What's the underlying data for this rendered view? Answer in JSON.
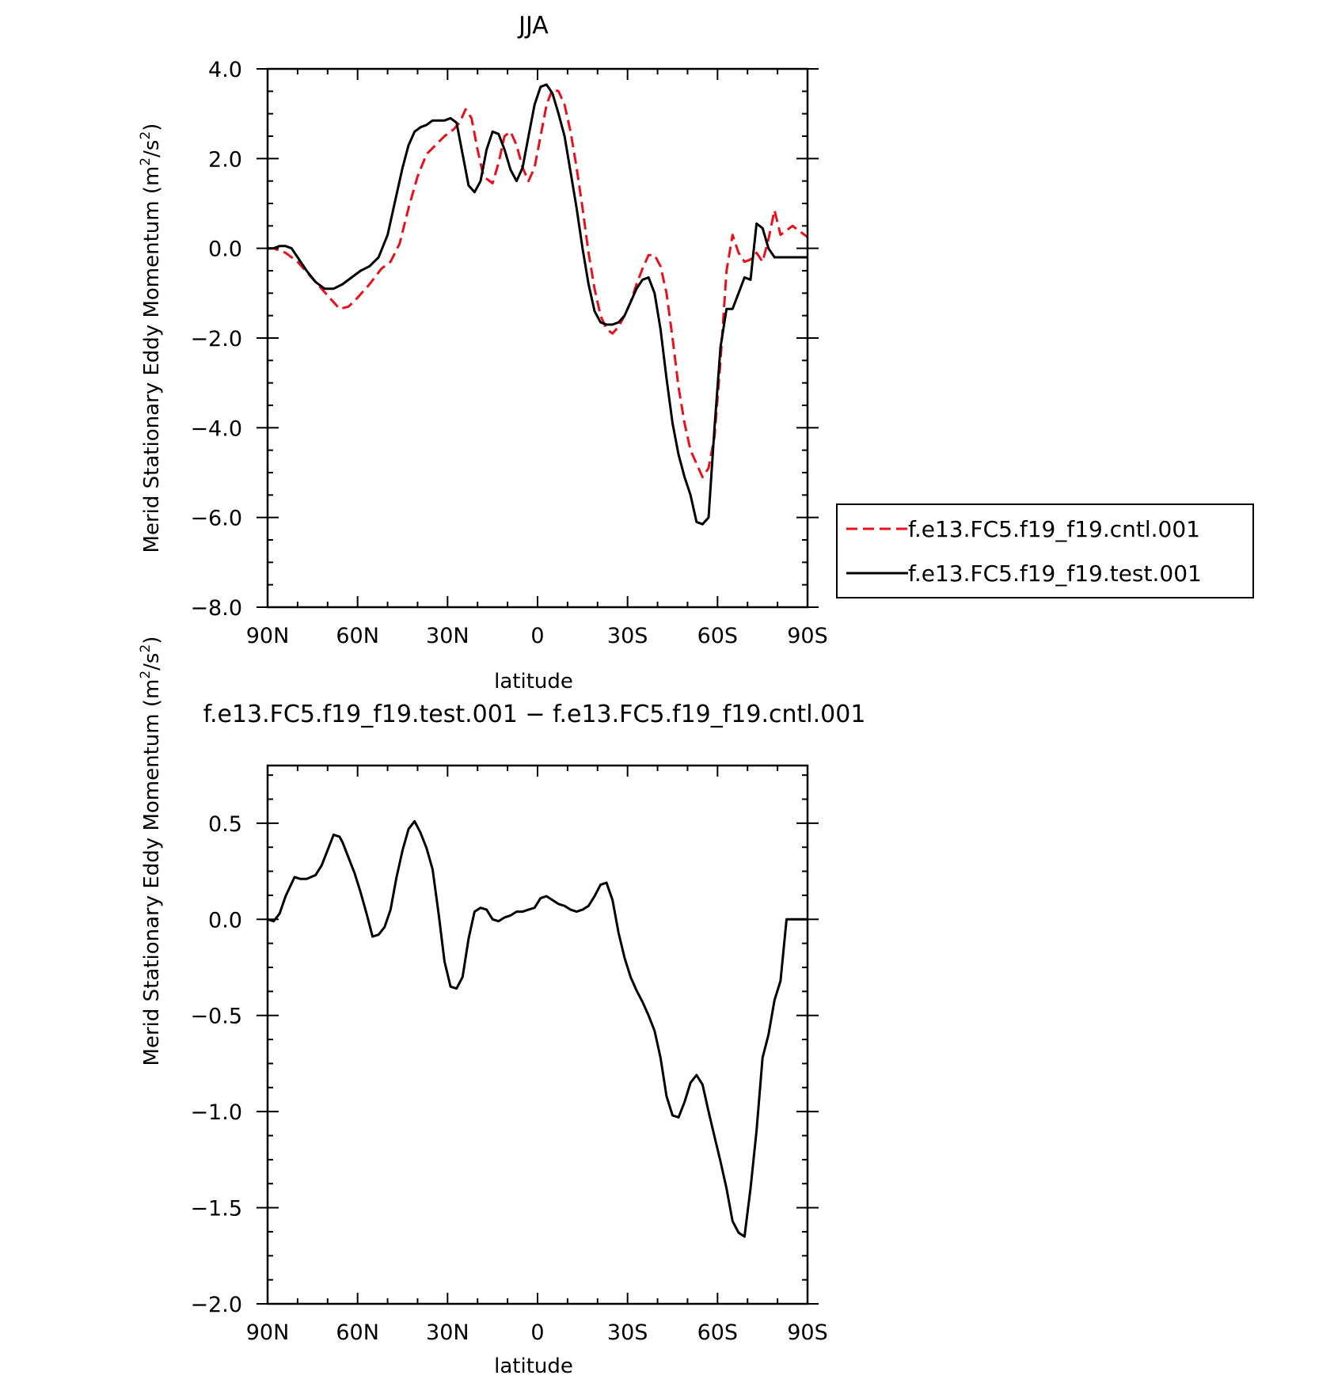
{
  "chart_data": [
    {
      "type": "line",
      "title": "JJA",
      "xlabel": "latitude",
      "ylabel": "Merid Stationary Eddy Momentum",
      "ylabel_unit_base": "m",
      "ylabel_unit_mid": "/s",
      "ylabel_unit_sup": "2",
      "xlim": [
        90,
        -90
      ],
      "ylim": [
        -8,
        4
      ],
      "xticks": [
        90,
        60,
        30,
        0,
        -30,
        -60,
        -90
      ],
      "xtick_labels": [
        "90N",
        "60N",
        "30N",
        "0",
        "30S",
        "60S",
        "90S"
      ],
      "yticks": [
        -8,
        -6,
        -4,
        -2,
        0,
        2,
        4
      ],
      "ytick_labels": [
        "−8.0",
        "−6.0",
        "−4.0",
        "−2.0",
        "0.0",
        "2.0",
        "4.0"
      ],
      "legend_placement": "right",
      "series": [
        {
          "name": "f.e13.FC5.f19_f19.cntl.001",
          "color": "#e8101a",
          "style": "dashed",
          "x": [
            90,
            88,
            84,
            80,
            76,
            72,
            68,
            66,
            63,
            60,
            56,
            52,
            49,
            46,
            43,
            40,
            37,
            34,
            31,
            28,
            26,
            24,
            22,
            20,
            18,
            15,
            13,
            11,
            9,
            7,
            5,
            3,
            1,
            -1,
            -3,
            -5,
            -7,
            -9,
            -11,
            -13,
            -15,
            -17,
            -19,
            -21,
            -23,
            -25,
            -27,
            -29,
            -31,
            -33,
            -35,
            -37,
            -39,
            -41,
            -43,
            -45,
            -47,
            -49,
            -51,
            -53,
            -55,
            -57,
            -59,
            -61,
            -63,
            -65,
            -67,
            -69,
            -71,
            -73,
            -75,
            -77,
            -79,
            -81,
            -83,
            -85,
            -86,
            -87,
            -88,
            -89,
            -90
          ],
          "y": [
            0.0,
            0.0,
            -0.1,
            -0.3,
            -0.6,
            -0.9,
            -1.2,
            -1.35,
            -1.3,
            -1.1,
            -0.8,
            -0.45,
            -0.3,
            0.1,
            0.9,
            1.6,
            2.1,
            2.3,
            2.5,
            2.65,
            2.8,
            3.1,
            2.9,
            2.2,
            1.6,
            1.45,
            1.9,
            2.5,
            2.6,
            2.3,
            1.8,
            1.5,
            1.8,
            2.5,
            3.2,
            3.55,
            3.5,
            3.2,
            2.6,
            1.8,
            0.9,
            -0.1,
            -0.9,
            -1.5,
            -1.8,
            -1.9,
            -1.75,
            -1.5,
            -1.2,
            -0.8,
            -0.45,
            -0.15,
            -0.15,
            -0.4,
            -1.0,
            -2.0,
            -3.1,
            -3.9,
            -4.5,
            -4.8,
            -5.1,
            -4.9,
            -4.2,
            -2.5,
            -0.5,
            0.3,
            -0.1,
            -0.3,
            -0.25,
            -0.1,
            -0.3,
            0.2,
            0.85,
            0.3,
            0.4,
            0.5,
            0.45,
            0.4,
            0.35,
            0.3,
            0.25
          ],
          "x_clip": true
        },
        {
          "name": "f.e13.FC5.f19_f19.test.001",
          "color": "#000000",
          "style": "solid",
          "x": [
            90,
            88,
            86,
            84,
            82,
            80,
            77,
            74,
            71,
            68,
            65,
            62,
            59,
            56,
            53,
            50,
            47,
            45,
            43,
            41,
            39,
            37,
            35,
            33,
            31,
            29,
            27,
            25,
            23,
            21,
            19,
            17,
            15,
            13,
            11,
            9,
            7,
            5,
            3,
            1,
            -1,
            -3,
            -5,
            -7,
            -9,
            -11,
            -13,
            -15,
            -17,
            -19,
            -21,
            -23,
            -25,
            -27,
            -29,
            -31,
            -33,
            -35,
            -37,
            -39,
            -41,
            -43,
            -45,
            -47,
            -49,
            -51,
            -53,
            -55,
            -57,
            -59,
            -61,
            -63,
            -65,
            -67,
            -69,
            -71,
            -73,
            -75,
            -77,
            -79,
            -81,
            -83,
            -85,
            -87,
            -88,
            -89,
            -90
          ],
          "y": [
            0.0,
            0.0,
            0.05,
            0.05,
            0.0,
            -0.2,
            -0.5,
            -0.75,
            -0.9,
            -0.9,
            -0.8,
            -0.65,
            -0.5,
            -0.4,
            -0.2,
            0.3,
            1.2,
            1.8,
            2.3,
            2.6,
            2.7,
            2.75,
            2.85,
            2.85,
            2.85,
            2.9,
            2.8,
            2.1,
            1.4,
            1.25,
            1.5,
            2.2,
            2.6,
            2.55,
            2.2,
            1.75,
            1.5,
            1.8,
            2.5,
            3.2,
            3.6,
            3.65,
            3.45,
            3.0,
            2.5,
            1.7,
            0.9,
            0.0,
            -0.8,
            -1.4,
            -1.65,
            -1.7,
            -1.7,
            -1.65,
            -1.5,
            -1.2,
            -0.9,
            -0.7,
            -0.65,
            -1.0,
            -1.8,
            -2.9,
            -3.9,
            -4.6,
            -5.1,
            -5.5,
            -6.1,
            -6.15,
            -6.0,
            -4.0,
            -2.2,
            -1.35,
            -1.35,
            -1.0,
            -0.65,
            -0.7,
            0.55,
            0.45,
            0.0,
            -0.2,
            -0.2,
            -0.2,
            -0.2,
            -0.2,
            -0.2,
            -0.2,
            -0.2
          ],
          "x_clip": true
        }
      ]
    },
    {
      "type": "line",
      "title": "f.e13.FC5.f19_f19.test.001 − f.e13.FC5.f19_f19.cntl.001",
      "xlabel": "latitude",
      "ylabel": "Merid Stationary Eddy Momentum",
      "ylabel_unit_base": "m",
      "ylabel_unit_mid": "/s",
      "ylabel_unit_sup": "2",
      "xlim": [
        90,
        -90
      ],
      "ylim": [
        -2.0,
        0.8
      ],
      "xticks": [
        90,
        60,
        30,
        0,
        -30,
        -60,
        -90
      ],
      "xtick_labels": [
        "90N",
        "60N",
        "30N",
        "0",
        "30S",
        "60S",
        "90S"
      ],
      "yticks": [
        -2.0,
        -1.5,
        -1.0,
        -0.5,
        0.0,
        0.5
      ],
      "ytick_labels": [
        "−2.0",
        "−1.5",
        "−1.0",
        "−0.5",
        "0.0",
        "0.5"
      ],
      "series": [
        {
          "color": "#000000",
          "style": "solid",
          "x": [
            90,
            88,
            86,
            84,
            81,
            79,
            77,
            74,
            72,
            70,
            68,
            66,
            65,
            63,
            61,
            59,
            57,
            55,
            53,
            51,
            49,
            47,
            45,
            43,
            41,
            39,
            37,
            35,
            33,
            31,
            29,
            27,
            25,
            23,
            21,
            19,
            17,
            15,
            13,
            11,
            9,
            7,
            5,
            3,
            1,
            -1,
            -3,
            -5,
            -7,
            -9,
            -11,
            -13,
            -15,
            -17,
            -19,
            -21,
            -23,
            -25,
            -27,
            -29,
            -31,
            -33,
            -35,
            -37,
            -39,
            -41,
            -43,
            -45,
            -47,
            -49,
            -51,
            -53,
            -55,
            -57,
            -59,
            -61,
            -63,
            -65,
            -67,
            -69,
            -71,
            -73,
            -75,
            -77,
            -79,
            -81,
            -83,
            -85,
            -87,
            -89,
            -90
          ],
          "y": [
            0.0,
            -0.01,
            0.03,
            0.12,
            0.22,
            0.21,
            0.21,
            0.23,
            0.28,
            0.36,
            0.44,
            0.43,
            0.4,
            0.32,
            0.24,
            0.14,
            0.03,
            -0.09,
            -0.08,
            -0.04,
            0.05,
            0.22,
            0.36,
            0.47,
            0.51,
            0.45,
            0.37,
            0.26,
            0.03,
            -0.22,
            -0.35,
            -0.36,
            -0.3,
            -0.1,
            0.04,
            0.06,
            0.05,
            0.0,
            -0.01,
            0.01,
            0.02,
            0.04,
            0.04,
            0.05,
            0.06,
            0.11,
            0.12,
            0.1,
            0.08,
            0.07,
            0.05,
            0.04,
            0.05,
            0.07,
            0.12,
            0.18,
            0.19,
            0.1,
            -0.07,
            -0.2,
            -0.3,
            -0.37,
            -0.43,
            -0.5,
            -0.58,
            -0.72,
            -0.92,
            -1.02,
            -1.03,
            -0.95,
            -0.85,
            -0.81,
            -0.86,
            -1.0,
            -1.13,
            -1.26,
            -1.4,
            -1.57,
            -1.63,
            -1.65,
            -1.4,
            -1.1,
            -0.72,
            -0.6,
            -0.42,
            -0.32,
            0.0,
            0.0,
            0.0,
            0.0,
            0.0
          ],
          "x_clip": true
        }
      ]
    }
  ]
}
